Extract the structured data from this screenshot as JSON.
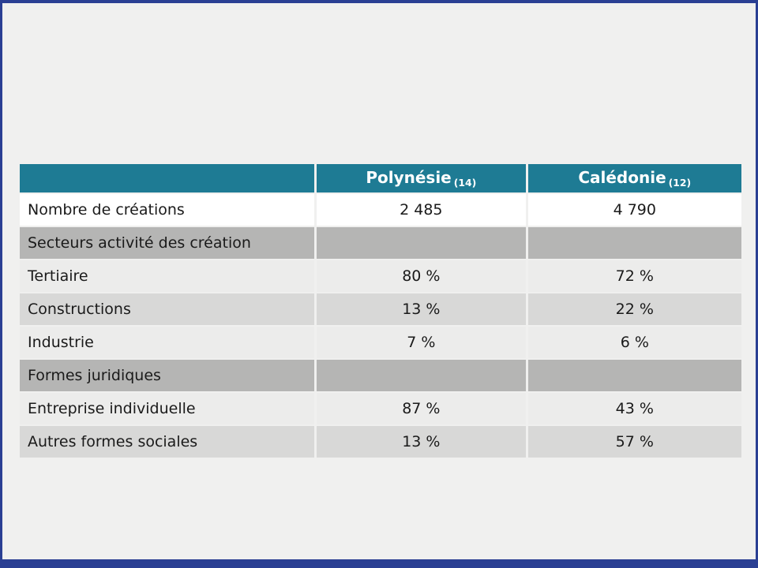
{
  "chart_data": {
    "type": "table",
    "title": "",
    "columns": [
      "",
      "Polynésie (14)",
      "Calédonie (12)"
    ],
    "rows": [
      [
        "Nombre de créations",
        "2 485",
        "4 790"
      ],
      [
        "Secteurs activité des création",
        "",
        ""
      ],
      [
        "Tertiaire",
        "80 %",
        "72 %"
      ],
      [
        "Constructions",
        "13 %",
        "22 %"
      ],
      [
        "Industrie",
        "7 %",
        "6 %"
      ],
      [
        "Formes juridiques",
        "",
        ""
      ],
      [
        "Entreprise individuelle",
        "87 %",
        "43 %"
      ],
      [
        "Autres formes sociales",
        "13 %",
        "57 %"
      ]
    ]
  },
  "table": {
    "header": {
      "col1": "",
      "polynesie_label": "Polynésie",
      "polynesie_sub": "(14)",
      "caledonie_label": "Calédonie",
      "caledonie_sub": "(12)"
    },
    "rows": [
      {
        "label": "Nombre de créations",
        "polynesie": "2 485",
        "caledonie": "4 790"
      },
      {
        "label": "Secteurs activité des création",
        "polynesie": "",
        "caledonie": ""
      },
      {
        "label": "Tertiaire",
        "polynesie": "80 %",
        "caledonie": "72 %"
      },
      {
        "label": "Constructions",
        "polynesie": "13 %",
        "caledonie": "22 %"
      },
      {
        "label": "Industrie",
        "polynesie": "7 %",
        "caledonie": "6 %"
      },
      {
        "label": "Formes juridiques",
        "polynesie": "",
        "caledonie": ""
      },
      {
        "label": "Entreprise individuelle",
        "polynesie": "87 %",
        "caledonie": "43 %"
      },
      {
        "label": "Autres formes sociales",
        "polynesie": "13 %",
        "caledonie": "57 %"
      }
    ]
  },
  "colors": {
    "header_bg": "#1e7b94",
    "section_row_bg": "#b5b5b4",
    "light_row_bg": "#ececeb",
    "dark_row_bg": "#d8d8d7",
    "white_row_bg": "#ffffff",
    "slide_bg": "#f0f0ef",
    "slide_border": "#2a3f93"
  }
}
